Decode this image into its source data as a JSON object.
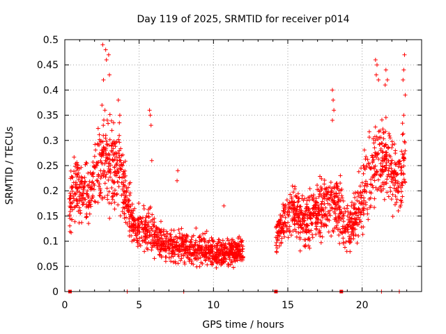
{
  "chart_data": {
    "type": "scatter",
    "title": "Day 119 of 2025, SRMTID for receiver p014",
    "xlabel": "GPS time / hours",
    "ylabel": "SRMTID / TECUs",
    "xlim": [
      0,
      24
    ],
    "ylim": [
      0,
      0.5
    ],
    "grid": true,
    "marker": "+",
    "marker_color": "#ff0000",
    "xticks": [
      {
        "value": 0,
        "label": "0"
      },
      {
        "value": 5,
        "label": "5"
      },
      {
        "value": 10,
        "label": "10"
      },
      {
        "value": 15,
        "label": "15"
      },
      {
        "value": 20,
        "label": "20"
      }
    ],
    "yticks": [
      {
        "value": 0,
        "label": "0"
      },
      {
        "value": 0.05,
        "label": "0.05"
      },
      {
        "value": 0.1,
        "label": "0.1"
      },
      {
        "value": 0.15,
        "label": "0.15"
      },
      {
        "value": 0.2,
        "label": "0.2"
      },
      {
        "value": 0.25,
        "label": "0.25"
      },
      {
        "value": 0.3,
        "label": "0.3"
      },
      {
        "value": 0.35,
        "label": "0.35"
      },
      {
        "value": 0.4,
        "label": "0.4"
      },
      {
        "value": 0.45,
        "label": "0.45"
      },
      {
        "value": 0.5,
        "label": "0.5"
      }
    ],
    "profile": {
      "x": [
        0.3,
        0.8,
        1.5,
        2.2,
        2.7,
        3.1,
        3.5,
        3.9,
        4.3,
        4.7,
        5.2,
        5.8,
        6.3,
        6.9,
        7.5,
        8.0,
        8.6,
        9.2,
        9.8,
        10.4,
        11.0,
        11.6,
        12.0,
        14.2,
        14.6,
        15.0,
        15.5,
        16.0,
        16.6,
        17.2,
        17.8,
        18.4,
        19.0,
        19.6,
        20.2,
        20.8,
        21.3,
        21.8,
        22.4,
        22.9
      ],
      "median": [
        0.17,
        0.21,
        0.19,
        0.23,
        0.26,
        0.25,
        0.25,
        0.22,
        0.16,
        0.13,
        0.12,
        0.12,
        0.1,
        0.09,
        0.09,
        0.09,
        0.08,
        0.09,
        0.08,
        0.08,
        0.08,
        0.08,
        0.08,
        0.11,
        0.13,
        0.15,
        0.16,
        0.14,
        0.15,
        0.17,
        0.18,
        0.16,
        0.13,
        0.15,
        0.2,
        0.25,
        0.27,
        0.25,
        0.22,
        0.26
      ],
      "spread": [
        0.05,
        0.06,
        0.06,
        0.07,
        0.08,
        0.08,
        0.07,
        0.06,
        0.05,
        0.04,
        0.04,
        0.04,
        0.035,
        0.03,
        0.03,
        0.035,
        0.03,
        0.03,
        0.03,
        0.03,
        0.025,
        0.025,
        0.025,
        0.035,
        0.04,
        0.045,
        0.05,
        0.05,
        0.05,
        0.055,
        0.06,
        0.055,
        0.05,
        0.05,
        0.06,
        0.07,
        0.07,
        0.07,
        0.07,
        0.08
      ],
      "points_per_hour": 110,
      "note": "dense cloud of + markers approximated from the visible envelope; data gap between 12.0 h and 14.2 h"
    },
    "outliers": [
      {
        "x": 2.55,
        "y": 0.49
      },
      {
        "x": 2.75,
        "y": 0.48
      },
      {
        "x": 2.8,
        "y": 0.46
      },
      {
        "x": 2.95,
        "y": 0.47
      },
      {
        "x": 3.0,
        "y": 0.43
      },
      {
        "x": 2.6,
        "y": 0.42
      },
      {
        "x": 2.5,
        "y": 0.37
      },
      {
        "x": 2.7,
        "y": 0.36
      },
      {
        "x": 3.6,
        "y": 0.38
      },
      {
        "x": 3.7,
        "y": 0.35
      },
      {
        "x": 5.7,
        "y": 0.36
      },
      {
        "x": 5.75,
        "y": 0.35
      },
      {
        "x": 5.8,
        "y": 0.33
      },
      {
        "x": 5.85,
        "y": 0.26
      },
      {
        "x": 7.6,
        "y": 0.24
      },
      {
        "x": 7.55,
        "y": 0.22
      },
      {
        "x": 10.7,
        "y": 0.17
      },
      {
        "x": 18.0,
        "y": 0.4
      },
      {
        "x": 18.05,
        "y": 0.38
      },
      {
        "x": 18.1,
        "y": 0.36
      },
      {
        "x": 18.0,
        "y": 0.34
      },
      {
        "x": 20.9,
        "y": 0.46
      },
      {
        "x": 21.0,
        "y": 0.45
      },
      {
        "x": 20.95,
        "y": 0.43
      },
      {
        "x": 21.1,
        "y": 0.42
      },
      {
        "x": 21.6,
        "y": 0.44
      },
      {
        "x": 21.7,
        "y": 0.42
      },
      {
        "x": 21.55,
        "y": 0.41
      },
      {
        "x": 22.85,
        "y": 0.47
      },
      {
        "x": 22.8,
        "y": 0.44
      },
      {
        "x": 22.75,
        "y": 0.42
      },
      {
        "x": 22.9,
        "y": 0.39
      },
      {
        "x": 22.8,
        "y": 0.35
      }
    ],
    "zero_markers": {
      "squares": [
        0.35,
        14.2,
        18.6
      ],
      "ticks": [
        4.2,
        8.0,
        21.3,
        22.5
      ]
    }
  }
}
